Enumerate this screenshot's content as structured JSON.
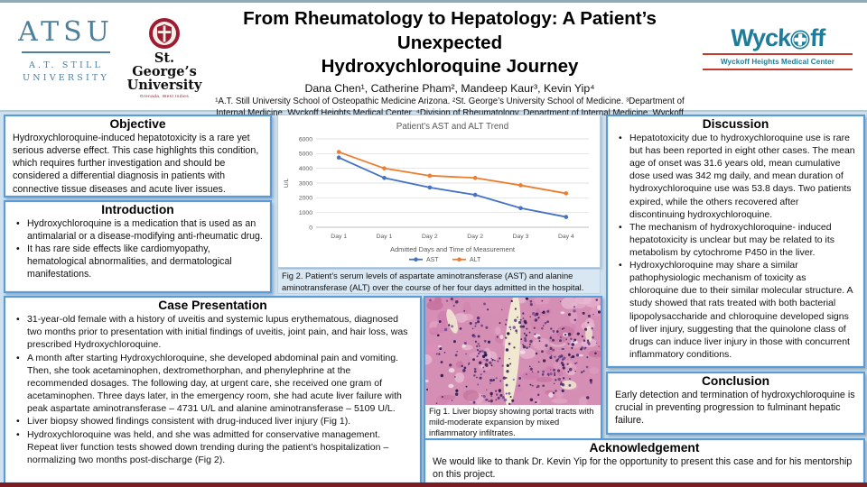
{
  "header": {
    "title_line1": "From Rheumatology to Hepatology: A Patient’s Unexpected",
    "title_line2": "Hydroxychloroquine Journey",
    "authors": "Dana Chen¹, Catherine Pham², Mandeep Kaur³, Kevin Yip⁴",
    "affiliations": "¹A.T. Still University School of Osteopathic Medicine Arizona. ²St. George’s University School of Medicine. ³Department of Internal Medicine, Wyckoff Heights Medical Center. ⁴Division of Rheumatology, Department of Internal Medicine, Wyckoff Heights Medical Center",
    "logos": {
      "atsu": {
        "acronym": "ATSU",
        "line1": "A.T. STILL",
        "line2": "UNIVERSITY"
      },
      "sgu": {
        "name_line1": "St. George’s",
        "name_line2": "University",
        "subtitle": "Grenada, West Indies"
      },
      "wyckoff": {
        "word_left": "Wyck",
        "word_right": "ff",
        "subtitle": "Wyckoff Heights Medical Center"
      }
    }
  },
  "sections": {
    "objective": {
      "title": "Objective",
      "body": "Hydroxychloroquine-induced hepatotoxicity is a rare yet serious adverse effect. This case highlights this condition, which requires further investigation and should be considered a differential diagnosis in patients with connective tissue diseases and acute liver issues."
    },
    "introduction": {
      "title": "Introduction",
      "bullets": [
        "Hydroxychloroquine is a medication that is used as an antimalarial or a disease-modifying anti-rheumatic drug.",
        "It has rare side effects like cardiomyopathy, hematological abnormalities, and dermatological manifestations."
      ]
    },
    "case_presentation": {
      "title": "Case Presentation",
      "bullets": [
        "31-year-old female with a history of uveitis and systemic lupus erythematous, diagnosed two months prior to presentation with initial findings of uveitis, joint pain, and hair loss, was prescribed Hydroxychloroquine.",
        "A month after starting Hydroxychloroquine, she developed abdominal pain and vomiting. Then, she took acetaminophen, dextromethorphan, and phenylephrine at the recommended dosages. The following day, at urgent care, she received one gram of acetaminophen. Three days later, in the emergency room, she had acute liver failure with peak aspartate aminotransferase – 4731 U/L and alanine aminotransferase – 5109 U/L.",
        "Liver biopsy showed findings consistent with drug-induced liver injury (Fig 1).",
        "Hydroxychloroquine was held, and she was admitted for conservative management. Repeat liver function tests showed down trending during the patient’s hospitalization – normalizing two months post-discharge (Fig 2)."
      ]
    },
    "discussion": {
      "title": "Discussion",
      "bullets": [
        "Hepatotoxicity due to hydroxychloroquine use is rare but has been reported in eight other cases. The mean age of onset was 31.6 years old, mean cumulative dose used was 342 mg daily, and mean duration of hydroxychloroquine use was 53.8 days. Two patients expired, while the others recovered after discontinuing hydroxychloroquine.",
        "The mechanism of hydroxychloroquine- induced hepatotoxicity is unclear but may be related to its metabolism by cytochrome P450 in the liver.",
        "Hydroxychloroquine may share a similar pathophysiologic mechanism of toxicity as chloroquine due to their similar molecular structure. A study showed that rats treated with both bacterial lipopolysaccharide and chloroquine developed signs of liver injury, suggesting that the quinolone class of drugs can induce liver injury in those with concurrent inflammatory conditions."
      ]
    },
    "conclusion": {
      "title": "Conclusion",
      "body": "Early detection and termination of hydroxychloroquine is crucial in preventing progression to fulminant hepatic failure."
    },
    "acknowledgement": {
      "title": "Acknowledgement",
      "body": "We would like to thank Dr. Kevin Yip for the opportunity to present this case and for his mentorship on this project."
    }
  },
  "figures": {
    "fig1_caption": "Fig 1. Liver biopsy showing portal tracts with mild-moderate expansion by mixed inflammatory infiltrates.",
    "fig2_caption": "Fig 2. Patient’s serum levels of aspartate aminotransferase (AST) and alanine aminotransferase (ALT) over the course of her four days admitted in the hospital."
  },
  "chart_data": {
    "type": "line",
    "title": "Patient's AST and ALT Trend",
    "categories": [
      "Day 1",
      "Day 1",
      "Day 2",
      "Day 2",
      "Day 3",
      "Day 4"
    ],
    "series": [
      {
        "name": "AST",
        "color": "#4472c4",
        "values": [
          4731,
          3350,
          2700,
          2200,
          1300,
          700
        ]
      },
      {
        "name": "ALT",
        "color": "#ed7d31",
        "values": [
          5109,
          4000,
          3500,
          3350,
          2850,
          2300
        ]
      }
    ],
    "xlabel": "Admitted Days and Time of Measurement",
    "ylabel": "U/L",
    "ylim": [
      0,
      6000
    ],
    "ytick_step": 1000,
    "grid": true,
    "legend_position": "bottom"
  },
  "colors": {
    "poster_background": "#cfe1ee",
    "box_border_blue": "#5b9bd5",
    "atsu_blue": "#4e7f9c",
    "sgu_red": "#9e1b32",
    "wyckoff_teal": "#1d7c99",
    "wyckoff_red": "#c23b2e",
    "bottom_strip_maroon": "#7a1c22"
  }
}
